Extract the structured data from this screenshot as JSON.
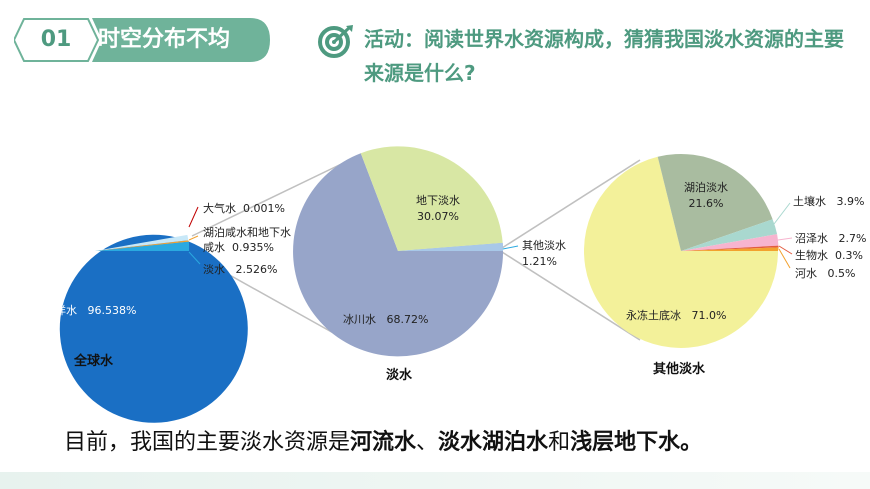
{
  "header": {
    "number": "01",
    "title": "时空分布不均"
  },
  "activity": {
    "text": "活动：阅读世界水资源构成，猜猜我国淡水资源的主要来源是什么?"
  },
  "charts": {
    "global": {
      "caption": "全球水",
      "slices": [
        {
          "name": "海洋水",
          "value": "96.538%",
          "color": "#1a6fc4"
        },
        {
          "name": "大气水",
          "value": "0.001%",
          "color": "#c00000"
        },
        {
          "name": "湖泊咸水和地下水咸水",
          "value": "0.935%",
          "color": "#f2a12e"
        },
        {
          "name": "淡水",
          "value": "2.526%",
          "color": "#2aa9e0"
        }
      ]
    },
    "fresh": {
      "caption": "淡水",
      "slices": [
        {
          "name": "冰川水",
          "value": "68.72%",
          "color": "#97a5c9"
        },
        {
          "name": "地下淡水",
          "value": "30.07%",
          "color": "#d8e7a4"
        },
        {
          "name": "其他淡水",
          "value": "1.21%",
          "color": "#a8c8e8"
        }
      ]
    },
    "other": {
      "caption": "其他淡水",
      "slices": [
        {
          "name": "永冻土底冰",
          "value": "71.0%",
          "color": "#f3f19a"
        },
        {
          "name": "湖泊淡水",
          "value": "21.6%",
          "color": "#a9bca0"
        },
        {
          "name": "土壤水",
          "value": "3.9%",
          "color": "#a9d8cf"
        },
        {
          "name": "沼泽水",
          "value": "2.7%",
          "color": "#f7b4cf"
        },
        {
          "name": "生物水",
          "value": "0.3%",
          "color": "#e35c3f"
        },
        {
          "name": "河水",
          "value": "0.5%",
          "color": "#f2a12e"
        }
      ]
    }
  },
  "bottom": {
    "prefix": "目前，我国的主要淡水资源是",
    "river": "河流水",
    "sep1": "、",
    "lake": "淡水湖泊水",
    "and": "和",
    "ground": "浅层地下水",
    "end": "。"
  }
}
